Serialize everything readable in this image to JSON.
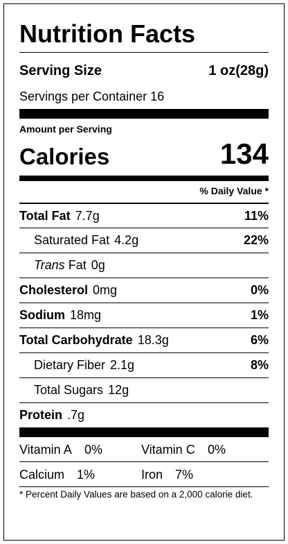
{
  "header": {
    "title": "Nutrition Facts"
  },
  "serving": {
    "size_label": "Serving Size",
    "size": "1 oz(28g)",
    "per_container_label": "Servings per Container",
    "per_container": 16
  },
  "amount_label": "Amount per Serving",
  "calories": {
    "label": "Calories",
    "value": 134
  },
  "daily_value_header": "% Daily Value *",
  "nutrients": [
    {
      "name": "Total Fat",
      "amount": "7.7g",
      "dv": "11%",
      "bold": true,
      "indent": false
    },
    {
      "name": "Saturated Fat",
      "amount": "4.2g",
      "dv": "22%",
      "bold": false,
      "indent": true
    },
    {
      "name_italic": "Trans",
      "name": "Fat",
      "amount": "0g",
      "bold": false,
      "indent": true
    },
    {
      "name": "Cholesterol",
      "amount": "0mg",
      "dv": "0%",
      "bold": true,
      "indent": false
    },
    {
      "name": "Sodium",
      "amount": "18mg",
      "dv": "1%",
      "bold": true,
      "indent": false
    },
    {
      "name": "Total Carbohydrate",
      "amount": "18.3g",
      "dv": "6%",
      "bold": true,
      "indent": false
    },
    {
      "name": "Dietary Fiber",
      "amount": "2.1g",
      "dv": "8%",
      "bold": false,
      "indent": true
    },
    {
      "name": "Total Sugars",
      "amount": "12g",
      "bold": false,
      "indent": true
    },
    {
      "name": "Protein",
      "amount": ".7g",
      "bold": true,
      "indent": false
    }
  ],
  "vitamins": [
    {
      "name": "Vitamin A",
      "dv": "0%"
    },
    {
      "name": "Vitamin C",
      "dv": "0%"
    },
    {
      "name": "Calcium",
      "dv": "1%"
    },
    {
      "name": "Iron",
      "dv": "7%"
    }
  ],
  "footnote": "* Percent Daily Values are based on a 2,000 calorie diet."
}
